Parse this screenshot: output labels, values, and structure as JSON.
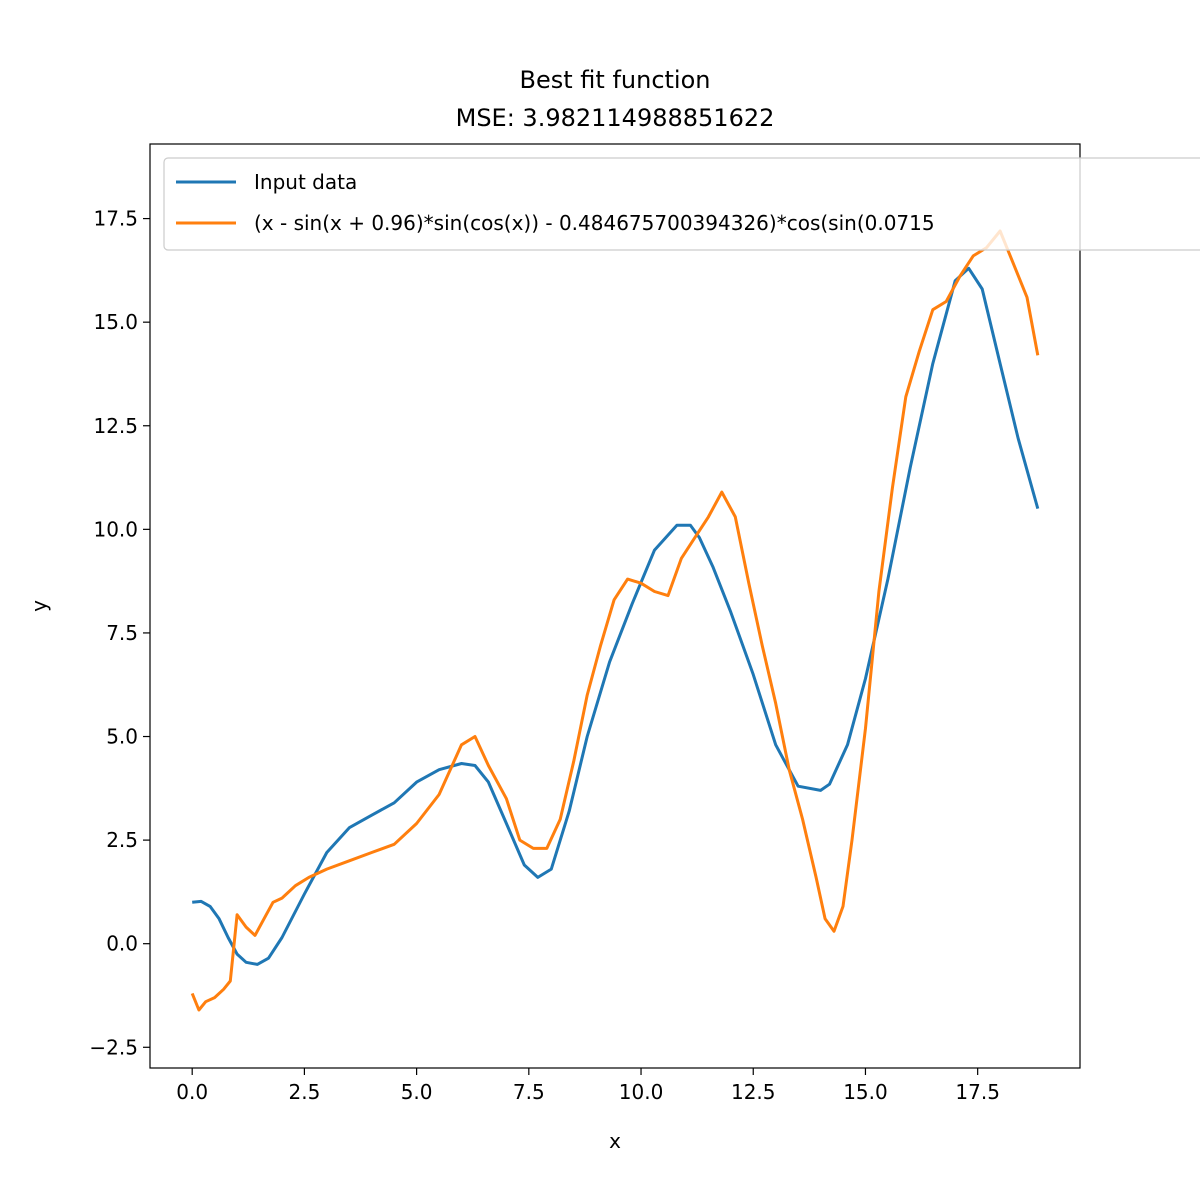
{
  "chart_data": {
    "type": "line",
    "title": "Best fit function",
    "subtitle": "MSE: 3.982114988851622",
    "xlabel": "x",
    "ylabel": "y",
    "xlim": [
      -0.94,
      19.78
    ],
    "ylim": [
      -3.0,
      19.3
    ],
    "xticks": [
      0.0,
      2.5,
      5.0,
      7.5,
      10.0,
      12.5,
      15.0,
      17.5
    ],
    "yticks": [
      -2.5,
      0.0,
      2.5,
      5.0,
      7.5,
      10.0,
      12.5,
      15.0,
      17.5
    ],
    "legend_position": "top-left",
    "grid": false,
    "series": [
      {
        "name": "Input data",
        "color": "#1f77b4",
        "x": [
          0.0,
          0.2,
          0.4,
          0.6,
          0.8,
          1.0,
          1.2,
          1.45,
          1.7,
          2.0,
          2.5,
          3.0,
          3.5,
          4.0,
          4.5,
          5.0,
          5.5,
          6.0,
          6.3,
          6.6,
          7.0,
          7.4,
          7.7,
          8.0,
          8.4,
          8.8,
          9.3,
          9.8,
          10.3,
          10.8,
          11.1,
          11.3,
          11.6,
          12.0,
          12.5,
          13.0,
          13.5,
          14.0,
          14.2,
          14.6,
          15.0,
          15.5,
          16.0,
          16.5,
          17.0,
          17.3,
          17.6,
          18.0,
          18.4,
          18.84
        ],
        "y": [
          1.0,
          1.02,
          0.9,
          0.6,
          0.15,
          -0.25,
          -0.45,
          -0.5,
          -0.35,
          0.15,
          1.2,
          2.2,
          2.8,
          3.1,
          3.4,
          3.9,
          4.2,
          4.35,
          4.3,
          3.9,
          2.9,
          1.9,
          1.6,
          1.8,
          3.2,
          5.0,
          6.8,
          8.2,
          9.5,
          10.1,
          10.1,
          9.8,
          9.1,
          8.0,
          6.5,
          4.8,
          3.8,
          3.7,
          3.85,
          4.8,
          6.4,
          8.8,
          11.5,
          14.0,
          16.0,
          16.3,
          15.8,
          14.0,
          12.2,
          10.5
        ]
      },
      {
        "name": "(x - sin(x + 0.96)*sin(cos(x)) - 0.484675700394326)*cos(sin(0.0715",
        "color": "#ff7f0e",
        "x": [
          0.0,
          0.15,
          0.3,
          0.5,
          0.7,
          0.85,
          1.0,
          1.2,
          1.4,
          1.6,
          1.8,
          2.0,
          2.3,
          2.6,
          3.0,
          3.5,
          4.0,
          4.5,
          5.0,
          5.5,
          6.0,
          6.3,
          6.6,
          7.0,
          7.3,
          7.6,
          7.9,
          8.2,
          8.5,
          8.8,
          9.1,
          9.4,
          9.7,
          10.0,
          10.3,
          10.6,
          10.9,
          11.2,
          11.5,
          11.8,
          12.1,
          12.4,
          12.7,
          13.0,
          13.3,
          13.6,
          13.9,
          14.1,
          14.3,
          14.5,
          14.7,
          15.0,
          15.3,
          15.6,
          15.9,
          16.2,
          16.5,
          16.8,
          17.1,
          17.4,
          17.7,
          18.0,
          18.3,
          18.6,
          18.84
        ],
        "y": [
          -1.2,
          -1.6,
          -1.4,
          -1.3,
          -1.1,
          -0.9,
          0.7,
          0.4,
          0.2,
          0.6,
          1.0,
          1.1,
          1.4,
          1.6,
          1.8,
          2.0,
          2.2,
          2.4,
          2.9,
          3.6,
          4.8,
          5.0,
          4.3,
          3.5,
          2.5,
          2.3,
          2.3,
          3.0,
          4.4,
          6.0,
          7.2,
          8.3,
          8.8,
          8.7,
          8.5,
          8.4,
          9.3,
          9.8,
          10.3,
          10.9,
          10.3,
          8.7,
          7.2,
          5.8,
          4.2,
          3.0,
          1.6,
          0.6,
          0.3,
          0.9,
          2.5,
          5.2,
          8.5,
          11.0,
          13.2,
          14.3,
          15.3,
          15.5,
          16.1,
          16.6,
          16.8,
          17.2,
          16.4,
          15.6,
          14.2
        ]
      }
    ]
  }
}
